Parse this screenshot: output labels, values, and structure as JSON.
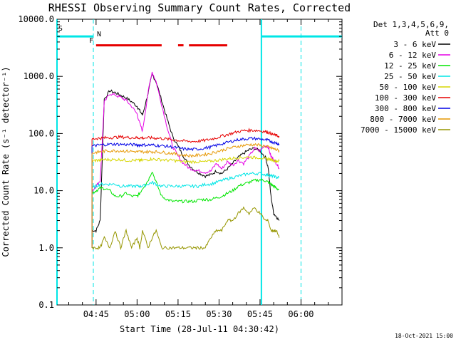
{
  "chart_data": {
    "type": "line",
    "title": "RHESSI Observing Summary Count Rates, Corrected",
    "xlabel": "Start Time (28-Jul-11 04:30:42)",
    "ylabel": "Corrected Count Rate (s⁻¹ detector⁻¹)",
    "footer": "18-Oct-2021 15:00",
    "x_unit": "minutes UT",
    "x_range": [
      270.7,
      375
    ],
    "ylim": [
      0.1,
      10000
    ],
    "yscale": "log",
    "xticks": [
      {
        "label": "04:45",
        "value": 285
      },
      {
        "label": "05:00",
        "value": 300
      },
      {
        "label": "05:15",
        "value": 315
      },
      {
        "label": "05:30",
        "value": 330
      },
      {
        "label": "05:45",
        "value": 345
      },
      {
        "label": "06:00",
        "value": 360
      }
    ],
    "yticks": [
      {
        "label": "0.1",
        "value": 0.1
      },
      {
        "label": "1.0",
        "value": 1
      },
      {
        "label": "10.0",
        "value": 10
      },
      {
        "label": "100.0",
        "value": 100
      },
      {
        "label": "1000.0",
        "value": 1000
      },
      {
        "label": "10000.0",
        "value": 10000
      }
    ],
    "legend_header": [
      "Det 1,3,4,5,6,9,",
      "Att 0"
    ],
    "legend_placement": "right",
    "series": [
      {
        "name": "3 - 6 keV",
        "color": "#000000",
        "x": [
          283.5,
          285,
          286.5,
          288,
          290,
          292,
          294,
          296,
          298,
          300,
          301,
          302,
          304,
          305.5,
          307,
          309,
          311,
          313,
          315,
          317,
          319,
          321,
          323,
          325,
          327,
          329,
          331,
          333,
          335,
          337,
          339,
          341,
          343,
          345,
          347,
          348,
          349,
          350,
          351,
          352
        ],
        "y": [
          2,
          2,
          3,
          400,
          560,
          520,
          470,
          420,
          360,
          300,
          250,
          210,
          500,
          1100,
          800,
          380,
          180,
          90,
          60,
          40,
          28,
          23,
          20,
          18,
          19,
          22,
          20,
          24,
          30,
          38,
          45,
          52,
          55,
          50,
          38,
          25,
          8,
          4,
          3.5,
          3
        ]
      },
      {
        "name": "6 - 12 keV",
        "color": "#e600e6",
        "x": [
          283.5,
          285,
          286.5,
          288,
          290,
          292,
          294,
          296,
          298,
          300,
          301,
          302,
          304,
          305.5,
          307,
          309,
          311,
          313,
          315,
          317,
          319,
          321,
          323,
          325,
          327,
          329,
          331,
          333,
          335,
          337,
          339,
          341,
          343,
          345,
          347,
          348,
          349,
          350,
          351,
          352
        ],
        "y": [
          10,
          12,
          15,
          350,
          500,
          470,
          430,
          380,
          300,
          220,
          150,
          110,
          520,
          1200,
          800,
          320,
          130,
          60,
          40,
          30,
          25,
          23,
          22,
          21,
          22,
          30,
          24,
          32,
          28,
          34,
          30,
          40,
          55,
          50,
          62,
          58,
          40,
          35,
          30,
          25
        ]
      },
      {
        "name": "12 - 25 keV",
        "color": "#00e600",
        "x": [
          283.5,
          285,
          286.5,
          288,
          290,
          292,
          294,
          296,
          298,
          300,
          301,
          302,
          304,
          305.5,
          307,
          309,
          311,
          313,
          315,
          317,
          319,
          321,
          323,
          325,
          327,
          329,
          331,
          333,
          335,
          337,
          339,
          341,
          343,
          345,
          347,
          348,
          349,
          350,
          351,
          352
        ],
        "y": [
          9,
          10,
          11,
          11,
          10,
          8,
          8,
          9,
          8,
          8,
          9,
          11,
          15,
          22,
          14,
          8,
          7,
          6.5,
          6.5,
          6.5,
          6.5,
          6.5,
          7,
          7,
          7,
          7.5,
          8,
          9,
          10,
          12,
          13,
          14,
          15,
          15.5,
          15,
          14,
          13,
          12,
          11,
          10.5
        ]
      },
      {
        "name": "25 - 50 keV",
        "color": "#00e6e6",
        "x": [
          283.5,
          285,
          286.5,
          288,
          290,
          292,
          294,
          296,
          298,
          300,
          301,
          302,
          304,
          305.5,
          307,
          309,
          311,
          313,
          315,
          317,
          319,
          321,
          323,
          325,
          327,
          329,
          331,
          333,
          335,
          337,
          339,
          341,
          343,
          345,
          347,
          348,
          349,
          350,
          351,
          352
        ],
        "y": [
          11,
          12,
          13,
          13,
          13,
          13,
          12,
          12,
          12,
          12,
          12,
          12,
          13,
          14,
          13,
          12,
          12,
          12,
          12,
          12,
          12,
          12,
          12,
          13,
          13,
          14,
          15,
          16,
          17,
          18,
          19,
          20,
          20,
          20,
          19,
          19,
          18,
          18,
          17,
          17
        ]
      },
      {
        "name": "50 - 100 keV",
        "color": "#d6d600",
        "x": [
          283.5,
          285,
          286.5,
          288,
          290,
          292,
          294,
          296,
          298,
          300,
          301,
          302,
          304,
          305.5,
          307,
          309,
          311,
          313,
          315,
          317,
          319,
          321,
          323,
          325,
          327,
          329,
          331,
          333,
          335,
          337,
          339,
          341,
          343,
          345,
          347,
          348,
          349,
          350,
          351,
          352
        ],
        "y": [
          33,
          34,
          34,
          35,
          35,
          35,
          35,
          34,
          34,
          34,
          34,
          34,
          35,
          36,
          35,
          35,
          34,
          34,
          33,
          32,
          32,
          32,
          32,
          32,
          33,
          34,
          35,
          36,
          37,
          38,
          38,
          39,
          38,
          38,
          36,
          36,
          35,
          34,
          33,
          33
        ]
      },
      {
        "name": "100 - 300 keV",
        "color": "#e60000",
        "x": [
          283.5,
          285,
          286.5,
          288,
          290,
          292,
          294,
          296,
          298,
          300,
          301,
          302,
          304,
          305.5,
          307,
          309,
          311,
          313,
          315,
          317,
          319,
          321,
          323,
          325,
          327,
          329,
          331,
          333,
          335,
          337,
          339,
          341,
          343,
          345,
          347,
          348,
          349,
          350,
          351,
          352
        ],
        "y": [
          80,
          82,
          83,
          84,
          85,
          86,
          87,
          86,
          85,
          84,
          84,
          84,
          84,
          84,
          83,
          82,
          80,
          78,
          76,
          74,
          73,
          73,
          74,
          76,
          80,
          84,
          90,
          96,
          102,
          108,
          112,
          114,
          114,
          112,
          108,
          105,
          100,
          95,
          92,
          90
        ]
      },
      {
        "name": "300 - 800 keV",
        "color": "#0000e6",
        "x": [
          283.5,
          285,
          286.5,
          288,
          290,
          292,
          294,
          296,
          298,
          300,
          301,
          302,
          304,
          305.5,
          307,
          309,
          311,
          313,
          315,
          317,
          319,
          321,
          323,
          325,
          327,
          329,
          331,
          333,
          335,
          337,
          339,
          341,
          343,
          345,
          347,
          348,
          349,
          350,
          351,
          352
        ],
        "y": [
          60,
          62,
          63,
          64,
          65,
          65,
          65,
          64,
          64,
          63,
          63,
          63,
          63,
          63,
          62,
          61,
          60,
          58,
          56,
          54,
          53,
          53,
          54,
          56,
          58,
          62,
          66,
          70,
          74,
          78,
          80,
          82,
          82,
          80,
          78,
          76,
          73,
          70,
          68,
          66
        ]
      },
      {
        "name": "800 - 7000 keV",
        "color": "#e69600",
        "x": [
          283.5,
          285,
          286.5,
          288,
          290,
          292,
          294,
          296,
          298,
          300,
          301,
          302,
          304,
          305.5,
          307,
          309,
          311,
          313,
          315,
          317,
          319,
          321,
          323,
          325,
          327,
          329,
          331,
          333,
          335,
          337,
          339,
          341,
          343,
          345,
          347,
          348,
          349,
          350,
          351,
          352
        ],
        "y": [
          45,
          47,
          48,
          49,
          50,
          50,
          50,
          49,
          49,
          48,
          48,
          48,
          48,
          48,
          48,
          47,
          46,
          45,
          43,
          42,
          41,
          41,
          42,
          43,
          45,
          48,
          51,
          54,
          57,
          60,
          62,
          64,
          64,
          62,
          60,
          58,
          56,
          54,
          52,
          50
        ]
      },
      {
        "name": "7000 - 15000 keV",
        "color": "#969600",
        "x": [
          283.5,
          285,
          286.5,
          288,
          290,
          292,
          294,
          296,
          298,
          300,
          301,
          302,
          304,
          305.5,
          307,
          309,
          311,
          313,
          315,
          317,
          319,
          321,
          323,
          325,
          327,
          329,
          331,
          333,
          335,
          337,
          339,
          341,
          343,
          345,
          347,
          348,
          349,
          350,
          351,
          352
        ],
        "y": [
          1,
          1,
          1,
          1.5,
          1,
          2,
          1,
          2,
          1,
          1.5,
          1,
          2,
          1,
          1.5,
          2,
          1,
          1,
          1,
          1,
          1,
          1,
          1,
          1,
          1,
          1.5,
          2,
          2,
          3,
          3,
          4,
          5,
          4,
          5,
          4,
          3,
          3,
          2,
          2,
          2,
          1.5
        ]
      }
    ],
    "flags": {
      "s_marker": {
        "label": "S",
        "color": "#e69600"
      },
      "n_marker": {
        "label": "N",
        "color": "#00e6e6"
      },
      "f_marker": {
        "label": "F",
        "color": "#e60000"
      },
      "night_bars": [
        [
          270.7,
          284
        ],
        [
          345.5,
          375
        ]
      ],
      "flare_bars": [
        [
          285,
          309
        ],
        [
          315,
          317
        ],
        [
          319,
          333
        ]
      ],
      "night_boundaries": [
        270.7,
        284,
        345.5,
        360
      ]
    }
  }
}
